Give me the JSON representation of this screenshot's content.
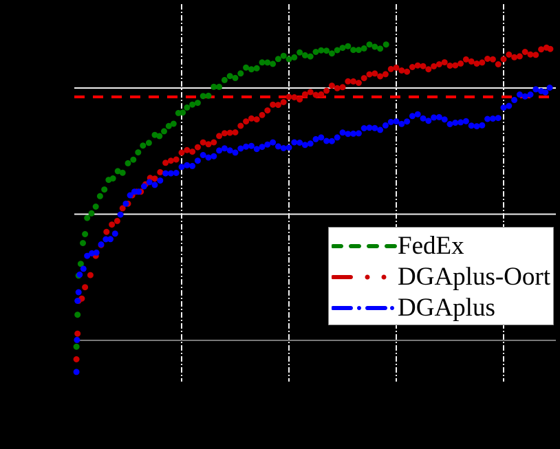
{
  "chart_data": {
    "type": "line",
    "title": "",
    "xlabel": "",
    "ylabel": "",
    "tick_labels_visible": false,
    "background": "#000000",
    "grid": true,
    "x_grid_positions": [
      1,
      2,
      3,
      4
    ],
    "y_grid_positions": [
      1,
      2,
      3
    ],
    "xlim": [
      0,
      4.49
    ],
    "ylim": [
      0.67,
      3.66
    ],
    "target_line": {
      "y": 2.93,
      "color": "#ff0000",
      "style": "dashed"
    },
    "legend_position": "center right",
    "series": [
      {
        "name": "FedEx",
        "color": "#008000",
        "style": "dashed",
        "points": [
          [
            0.02,
            0.95
          ],
          [
            0.04,
            1.5
          ],
          [
            0.08,
            1.75
          ],
          [
            0.12,
            1.95
          ],
          [
            0.2,
            2.05
          ],
          [
            0.28,
            2.2
          ],
          [
            0.36,
            2.3
          ],
          [
            0.45,
            2.35
          ],
          [
            0.55,
            2.45
          ],
          [
            0.64,
            2.55
          ],
          [
            0.75,
            2.62
          ],
          [
            0.88,
            2.68
          ],
          [
            0.97,
            2.78
          ],
          [
            1.05,
            2.83
          ],
          [
            1.15,
            2.88
          ],
          [
            1.25,
            2.95
          ],
          [
            1.35,
            3.03
          ],
          [
            1.5,
            3.1
          ],
          [
            1.65,
            3.16
          ],
          [
            1.8,
            3.2
          ],
          [
            1.95,
            3.24
          ],
          [
            2.1,
            3.26
          ],
          [
            2.3,
            3.28
          ],
          [
            2.5,
            3.31
          ],
          [
            2.7,
            3.32
          ],
          [
            2.85,
            3.33
          ],
          [
            2.96,
            3.33
          ]
        ]
      },
      {
        "name": "DGAplus-Oort",
        "color": "#cc0000",
        "style": "dashdot-sparse",
        "points": [
          [
            0.02,
            0.85
          ],
          [
            0.04,
            1.3
          ],
          [
            0.1,
            1.4
          ],
          [
            0.2,
            1.65
          ],
          [
            0.3,
            1.85
          ],
          [
            0.4,
            1.95
          ],
          [
            0.5,
            2.1
          ],
          [
            0.62,
            2.2
          ],
          [
            0.75,
            2.3
          ],
          [
            0.9,
            2.43
          ],
          [
            1.05,
            2.5
          ],
          [
            1.2,
            2.55
          ],
          [
            1.4,
            2.62
          ],
          [
            1.6,
            2.72
          ],
          [
            1.8,
            2.82
          ],
          [
            1.95,
            2.9
          ],
          [
            2.1,
            2.93
          ],
          [
            2.3,
            2.97
          ],
          [
            2.45,
            3.01
          ],
          [
            2.6,
            3.05
          ],
          [
            2.8,
            3.1
          ],
          [
            3.0,
            3.14
          ],
          [
            3.2,
            3.16
          ],
          [
            3.4,
            3.18
          ],
          [
            3.6,
            3.2
          ],
          [
            3.8,
            3.22
          ],
          [
            3.95,
            3.21
          ],
          [
            4.1,
            3.26
          ],
          [
            4.25,
            3.27
          ],
          [
            4.4,
            3.31
          ],
          [
            4.47,
            3.35
          ]
        ]
      },
      {
        "name": "DGAplus",
        "color": "#0000ff",
        "style": "dashdot",
        "points": [
          [
            0.02,
            0.75
          ],
          [
            0.03,
            1.3
          ],
          [
            0.05,
            1.5
          ],
          [
            0.12,
            1.65
          ],
          [
            0.25,
            1.75
          ],
          [
            0.38,
            1.85
          ],
          [
            0.48,
            2.1
          ],
          [
            0.6,
            2.2
          ],
          [
            0.75,
            2.25
          ],
          [
            0.9,
            2.33
          ],
          [
            1.05,
            2.38
          ],
          [
            1.2,
            2.45
          ],
          [
            1.4,
            2.5
          ],
          [
            1.6,
            2.52
          ],
          [
            1.8,
            2.55
          ],
          [
            2.0,
            2.54
          ],
          [
            2.2,
            2.58
          ],
          [
            2.4,
            2.6
          ],
          [
            2.6,
            2.65
          ],
          [
            2.8,
            2.68
          ],
          [
            3.0,
            2.72
          ],
          [
            3.2,
            2.77
          ],
          [
            3.4,
            2.75
          ],
          [
            3.6,
            2.72
          ],
          [
            3.8,
            2.71
          ],
          [
            3.95,
            2.78
          ],
          [
            4.05,
            2.88
          ],
          [
            4.2,
            2.95
          ],
          [
            4.35,
            2.98
          ],
          [
            4.47,
            3.0
          ]
        ]
      }
    ]
  },
  "legend": {
    "items": [
      {
        "label": "FedEx",
        "color": "#008000"
      },
      {
        "label": "DGAplus-Oort",
        "color": "#cc0000"
      },
      {
        "label": "DGAplus",
        "color": "#0000ff"
      }
    ]
  }
}
